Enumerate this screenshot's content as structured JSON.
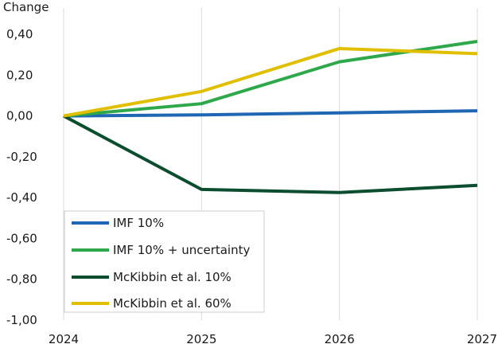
{
  "chart_data": {
    "type": "line",
    "ylabel": "Change",
    "xlabel": "",
    "x": [
      "2024",
      "2025",
      "2026",
      "2027"
    ],
    "ylim": [
      -1.0,
      0.4
    ],
    "yticks": [
      "0,40",
      "0,20",
      "0,00",
      "-0,20",
      "-0,40",
      "-0,60",
      "-0,80",
      "-1,00"
    ],
    "ytick_values": [
      0.4,
      0.2,
      0.0,
      -0.2,
      -0.4,
      -0.6,
      -0.8,
      -1.0
    ],
    "grid": "vertical",
    "legend_position": "bottom-left",
    "series": [
      {
        "name": "IMF 10%",
        "color": "#1f66b3",
        "values": [
          0.0,
          0.005,
          0.015,
          0.025
        ]
      },
      {
        "name": "IMF 10% + uncertainty",
        "color": "#2ea84a",
        "values": [
          0.0,
          0.06,
          0.265,
          0.365
        ]
      },
      {
        "name": "McKibbin et al. 10%",
        "color": "#0b4d2f",
        "values": [
          0.0,
          -0.36,
          -0.375,
          -0.34
        ]
      },
      {
        "name": "McKibbin et al. 60%",
        "color": "#e0be00",
        "values": [
          0.0,
          0.12,
          0.33,
          0.305
        ]
      }
    ]
  }
}
